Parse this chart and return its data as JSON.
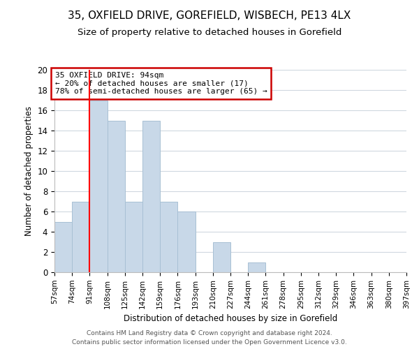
{
  "title": "35, OXFIELD DRIVE, GOREFIELD, WISBECH, PE13 4LX",
  "subtitle": "Size of property relative to detached houses in Gorefield",
  "xlabel": "Distribution of detached houses by size in Gorefield",
  "ylabel": "Number of detached properties",
  "bar_values": [
    5,
    7,
    17,
    15,
    7,
    15,
    7,
    6,
    0,
    3,
    0,
    1,
    0,
    0,
    0,
    0,
    0,
    0,
    0,
    0
  ],
  "bin_edges": [
    57,
    74,
    91,
    108,
    125,
    142,
    159,
    176,
    193,
    210,
    227,
    244,
    261,
    278,
    295,
    312,
    329,
    346,
    363,
    380,
    397
  ],
  "bar_color": "#c8d8e8",
  "bar_edgecolor": "#a8c0d4",
  "redline_x": 91,
  "ylim": [
    0,
    20
  ],
  "yticks": [
    0,
    2,
    4,
    6,
    8,
    10,
    12,
    14,
    16,
    18,
    20
  ],
  "annotation_title": "35 OXFIELD DRIVE: 94sqm",
  "annotation_line1": "← 20% of detached houses are smaller (17)",
  "annotation_line2": "78% of semi-detached houses are larger (65) →",
  "annotation_box_color": "#ffffff",
  "annotation_box_edgecolor": "#cc0000",
  "footer_line1": "Contains HM Land Registry data © Crown copyright and database right 2024.",
  "footer_line2": "Contains public sector information licensed under the Open Government Licence v3.0.",
  "background_color": "#ffffff",
  "grid_color": "#d0d8e0",
  "title_fontsize": 11,
  "subtitle_fontsize": 9.5
}
